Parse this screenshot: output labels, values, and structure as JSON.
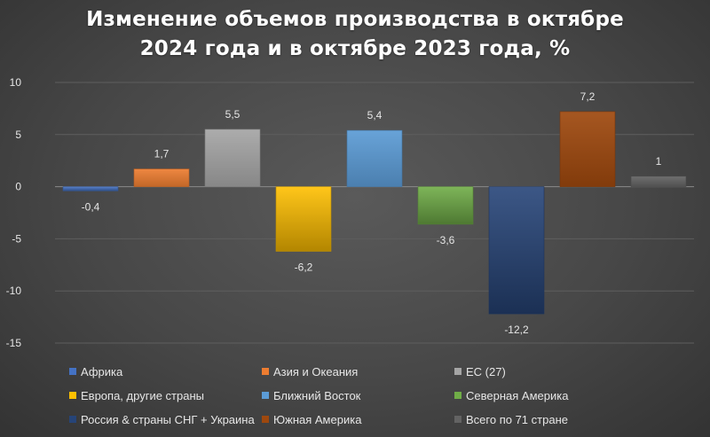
{
  "chart_data": {
    "type": "bar",
    "title_lines": [
      "Изменение объемов производства в октябре",
      "2024 года и в октябре 2023 года, %"
    ],
    "categories": [
      "Африка",
      "Азия и Океания",
      "ЕС (27)",
      "Европа, другие страны",
      "Ближний Восток",
      "Северная Америка",
      "Россия & страны СНГ + Украина",
      "Южная Америка",
      "Всего по 71 стране"
    ],
    "values": [
      -0.4,
      1.7,
      5.5,
      -6.2,
      5.4,
      -3.6,
      -12.2,
      7.2,
      1
    ],
    "data_labels": [
      "-0,4",
      "1,7",
      "5,5",
      "-6,2",
      "5,4",
      "-3,6",
      "-12,2",
      "7,2",
      "1"
    ],
    "colors": [
      "#4472c4",
      "#ed7d31",
      "#a5a5a5",
      "#ffc000",
      "#5b9bd5",
      "#70ad47",
      "#264478",
      "#9e480e",
      "#636363"
    ],
    "ylim": [
      -15,
      10
    ],
    "yticks": [
      10,
      5,
      0,
      -5,
      -10,
      -15
    ],
    "ytick_labels": [
      "10",
      "5",
      "0",
      "-5",
      "-10",
      "-15"
    ],
    "grid": true,
    "legend_position": "bottom"
  }
}
